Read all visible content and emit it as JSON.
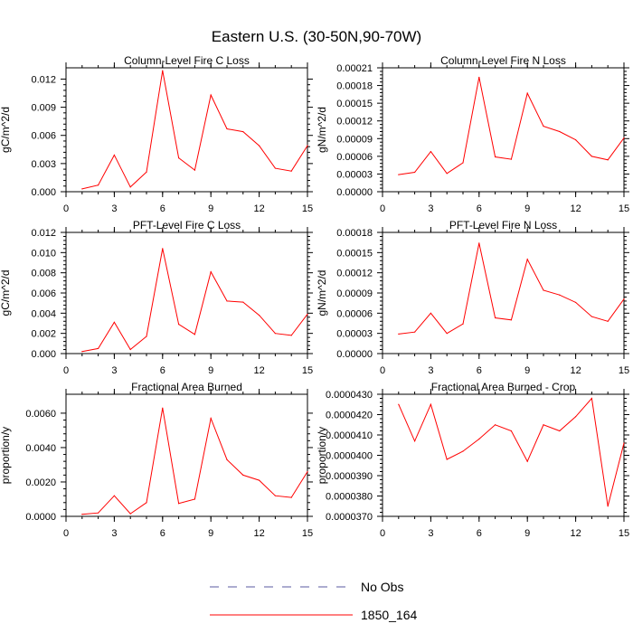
{
  "title": "Eastern U.S. (30-50N,90-70W)",
  "legend": {
    "entries": [
      {
        "label": "No Obs",
        "color": "#5a5aa0",
        "dash": true
      },
      {
        "label": "1850_164",
        "color": "#ff0000",
        "dash": false
      }
    ]
  },
  "chart_data": [
    {
      "type": "line",
      "title": "Column-Level Fire C Loss",
      "ylabel": "gC/m^2/d",
      "xlim": [
        0,
        15
      ],
      "ylim": [
        0,
        0.0132
      ],
      "xticks": [
        0,
        3,
        6,
        9,
        12,
        15
      ],
      "xtick_labels": [
        "0",
        "3",
        "6",
        "9",
        "12",
        "15"
      ],
      "yticks": [
        0,
        0.003,
        0.006,
        0.009,
        0.012
      ],
      "ytick_labels": [
        "0.000",
        "0.003",
        "0.006",
        "0.009",
        "0.012"
      ],
      "series": [
        {
          "name": "1850_164",
          "color": "#ff0000",
          "x": [
            1,
            2,
            3,
            4,
            5,
            6,
            7,
            8,
            9,
            10,
            11,
            12,
            13,
            14,
            15
          ],
          "y": [
            0.0003,
            0.0007,
            0.0039,
            0.0005,
            0.0021,
            0.0129,
            0.0036,
            0.0023,
            0.0103,
            0.0067,
            0.0064,
            0.0049,
            0.0025,
            0.0022,
            0.0049
          ]
        }
      ]
    },
    {
      "type": "line",
      "title": "Column-Level Fire N Loss",
      "ylabel": "gN/m^2/d",
      "xlim": [
        0,
        15
      ],
      "ylim": [
        0,
        0.00021
      ],
      "xticks": [
        0,
        3,
        6,
        9,
        12,
        15
      ],
      "xtick_labels": [
        "0",
        "3",
        "6",
        "9",
        "12",
        "15"
      ],
      "yticks": [
        0,
        3e-05,
        6e-05,
        9e-05,
        0.00012,
        0.00015,
        0.00018,
        0.00021
      ],
      "ytick_labels": [
        "0.00000",
        "0.00003",
        "0.00006",
        "0.00009",
        "0.00012",
        "0.00015",
        "0.00018",
        "0.00021"
      ],
      "series": [
        {
          "name": "1850_164",
          "color": "#ff0000",
          "x": [
            1,
            2,
            3,
            4,
            5,
            6,
            7,
            8,
            9,
            10,
            11,
            12,
            13,
            14,
            15
          ],
          "y": [
            2.9e-05,
            3.3e-05,
            6.8e-05,
            3.1e-05,
            4.9e-05,
            0.000194,
            5.9e-05,
            5.5e-05,
            0.000167,
            0.000111,
            0.000102,
            8.8e-05,
            6e-05,
            5.4e-05,
            9.1e-05
          ]
        }
      ]
    },
    {
      "type": "line",
      "title": "PFT-Level Fire C Loss",
      "ylabel": "gC/m^2/d",
      "xlim": [
        0,
        15
      ],
      "ylim": [
        0,
        0.012
      ],
      "xticks": [
        0,
        3,
        6,
        9,
        12,
        15
      ],
      "xtick_labels": [
        "0",
        "3",
        "6",
        "9",
        "12",
        "15"
      ],
      "yticks": [
        0,
        0.002,
        0.004,
        0.006,
        0.008,
        0.01,
        0.012
      ],
      "ytick_labels": [
        "0.000",
        "0.002",
        "0.004",
        "0.006",
        "0.008",
        "0.010",
        "0.012"
      ],
      "series": [
        {
          "name": "1850_164",
          "color": "#ff0000",
          "x": [
            1,
            2,
            3,
            4,
            5,
            6,
            7,
            8,
            9,
            10,
            11,
            12,
            13,
            14,
            15
          ],
          "y": [
            0.0002,
            0.0005,
            0.0031,
            0.0004,
            0.0017,
            0.0104,
            0.0029,
            0.0019,
            0.0081,
            0.0052,
            0.0051,
            0.0038,
            0.002,
            0.0018,
            0.0039
          ]
        }
      ]
    },
    {
      "type": "line",
      "title": "PFT-Level Fire N Loss",
      "ylabel": "gN/m^2/d",
      "xlim": [
        0,
        15
      ],
      "ylim": [
        0,
        0.00018
      ],
      "xticks": [
        0,
        3,
        6,
        9,
        12,
        15
      ],
      "xtick_labels": [
        "0",
        "3",
        "6",
        "9",
        "12",
        "15"
      ],
      "yticks": [
        0,
        3e-05,
        6e-05,
        9e-05,
        0.00012,
        0.00015,
        0.00018
      ],
      "ytick_labels": [
        "0.00000",
        "0.00003",
        "0.00006",
        "0.00009",
        "0.00012",
        "0.00015",
        "0.00018"
      ],
      "series": [
        {
          "name": "1850_164",
          "color": "#ff0000",
          "x": [
            1,
            2,
            3,
            4,
            5,
            6,
            7,
            8,
            9,
            10,
            11,
            12,
            13,
            14,
            15
          ],
          "y": [
            2.9e-05,
            3.2e-05,
            6e-05,
            3e-05,
            4.4e-05,
            0.000164,
            5.3e-05,
            5e-05,
            0.00014,
            9.4e-05,
            8.7e-05,
            7.6e-05,
            5.5e-05,
            4.8e-05,
            8.1e-05
          ]
        }
      ]
    },
    {
      "type": "line",
      "title": "Fractional Area Burned",
      "ylabel": "proportion/y",
      "xlim": [
        0,
        15
      ],
      "ylim": [
        0,
        0.0071
      ],
      "xticks": [
        0,
        3,
        6,
        9,
        12,
        15
      ],
      "xtick_labels": [
        "0",
        "3",
        "6",
        "9",
        "12",
        "15"
      ],
      "yticks": [
        0,
        0.002,
        0.004,
        0.006
      ],
      "ytick_labels": [
        "0.0000",
        "0.0020",
        "0.0040",
        "0.0060"
      ],
      "series": [
        {
          "name": "1850_164",
          "color": "#ff0000",
          "x": [
            1,
            2,
            3,
            4,
            5,
            6,
            7,
            8,
            9,
            10,
            11,
            12,
            13,
            14,
            15
          ],
          "y": [
            0.00012,
            0.0002,
            0.0012,
            0.00015,
            0.0008,
            0.0063,
            0.00075,
            0.001,
            0.0057,
            0.0033,
            0.0024,
            0.0021,
            0.0012,
            0.0011,
            0.0026
          ]
        }
      ]
    },
    {
      "type": "line",
      "title": "Fractional Area Burned - Crop",
      "ylabel": "proportion/y",
      "xlim": [
        0,
        15
      ],
      "ylim": [
        3.7e-05,
        4.3e-05
      ],
      "xticks": [
        0,
        3,
        6,
        9,
        12,
        15
      ],
      "xtick_labels": [
        "0",
        "3",
        "6",
        "9",
        "12",
        "15"
      ],
      "yticks": [
        3.7e-05,
        3.8e-05,
        3.9e-05,
        4e-05,
        4.1e-05,
        4.2e-05,
        4.3e-05
      ],
      "ytick_labels": [
        "0.0000370",
        "0.0000380",
        "0.0000390",
        "0.0000400",
        "0.0000410",
        "0.0000420",
        "0.0000430"
      ],
      "series": [
        {
          "name": "1850_164",
          "color": "#ff0000",
          "x": [
            1,
            2,
            3,
            4,
            5,
            6,
            7,
            8,
            9,
            10,
            11,
            12,
            13,
            14,
            15
          ],
          "y": [
            4.25e-05,
            4.07e-05,
            4.25e-05,
            3.98e-05,
            4.02e-05,
            4.08e-05,
            4.15e-05,
            4.12e-05,
            3.97e-05,
            4.15e-05,
            4.12e-05,
            4.19e-05,
            4.28e-05,
            3.75e-05,
            4.06e-05
          ]
        }
      ]
    }
  ]
}
